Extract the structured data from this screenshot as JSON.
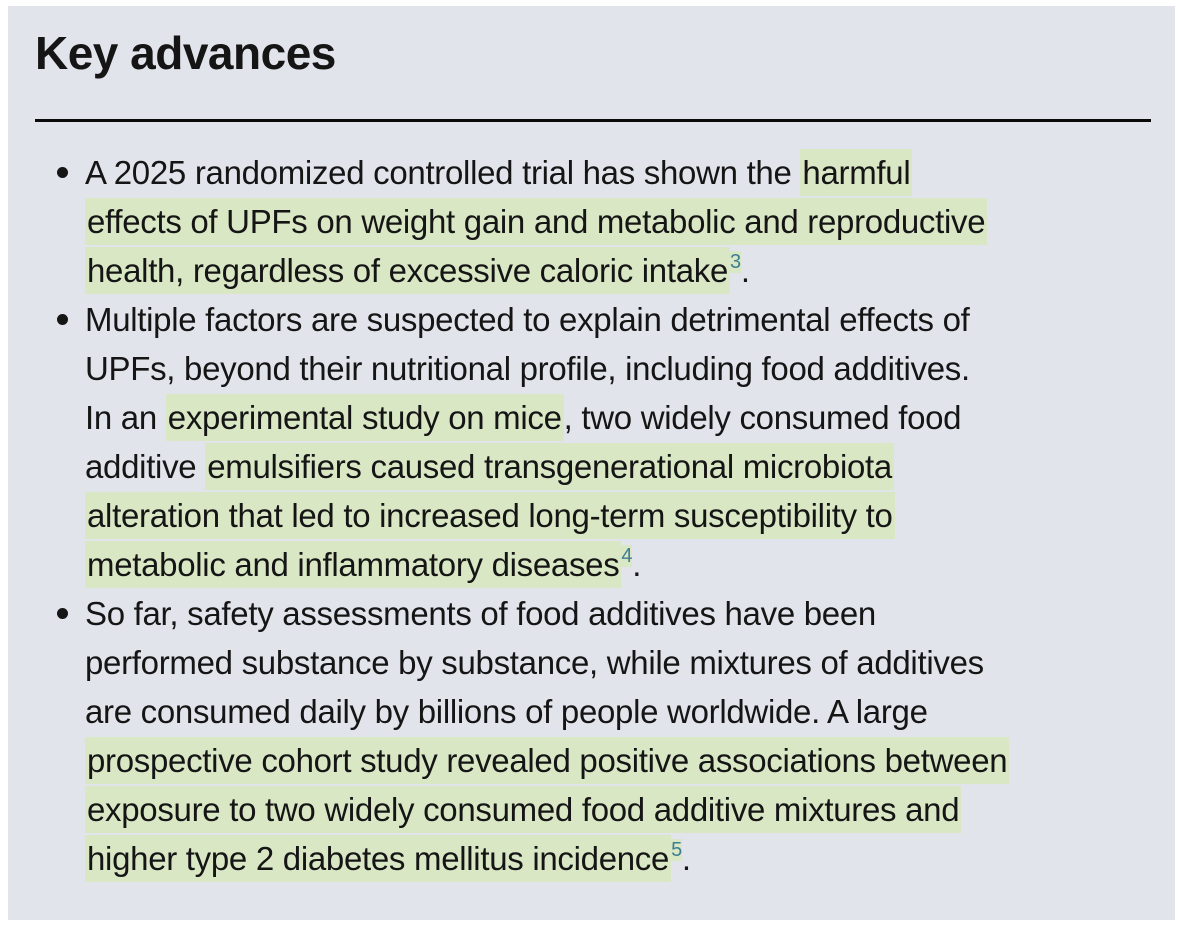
{
  "panel": {
    "title": "Key advances",
    "bullets": [
      {
        "lines": [
          [
            {
              "t": "A 2025 randomized controlled trial has shown the "
            },
            {
              "t": "harmful",
              "h": true
            }
          ],
          [
            {
              "t": "effects of UPFs on weight gain and metabolic and reproductive",
              "h": true
            }
          ],
          [
            {
              "t": "health, regardless of excessive caloric intake",
              "h": true
            },
            {
              "t": "3",
              "h": true,
              "ref": true
            },
            {
              "t": "."
            }
          ]
        ]
      },
      {
        "lines": [
          [
            {
              "t": "Multiple factors are suspected to explain detrimental effects of"
            }
          ],
          [
            {
              "t": "UPFs, beyond their nutritional profile, including food additives."
            }
          ],
          [
            {
              "t": "In an "
            },
            {
              "t": "experimental study on mice",
              "h": true
            },
            {
              "t": ", two widely consumed food"
            }
          ],
          [
            {
              "t": "additive "
            },
            {
              "t": "emulsifiers caused transgenerational microbiota",
              "h": true
            }
          ],
          [
            {
              "t": "alteration that led to increased long-term susceptibility to",
              "h": true
            }
          ],
          [
            {
              "t": "metabolic and inflammatory diseases",
              "h": true
            },
            {
              "t": "4",
              "h": true,
              "ref": true
            },
            {
              "t": "."
            }
          ]
        ]
      },
      {
        "lines": [
          [
            {
              "t": "So far, safety assessments of food additives have been"
            }
          ],
          [
            {
              "t": "performed substance by substance, while mixtures of additives"
            }
          ],
          [
            {
              "t": "are consumed daily by billions of people worldwide. A large"
            }
          ],
          [
            {
              "t": "prospective cohort study revealed positive associations between",
              "h": true
            }
          ],
          [
            {
              "t": "exposure to two widely consumed food additive mixtures and",
              "h": true
            }
          ],
          [
            {
              "t": "higher type 2 diabetes mellitus incidence",
              "h": true
            },
            {
              "t": "5",
              "h": true,
              "ref": true
            },
            {
              "t": "."
            }
          ]
        ]
      }
    ],
    "reference_numbers": [
      "3",
      "4",
      "5"
    ]
  },
  "colors": {
    "page_bg": "#ffffff",
    "panel_bg": "#e2e4ec",
    "highlight": "#d9e7c5",
    "text": "#151515",
    "reference": "#3e7e91",
    "rule": "#0a0a0a"
  }
}
